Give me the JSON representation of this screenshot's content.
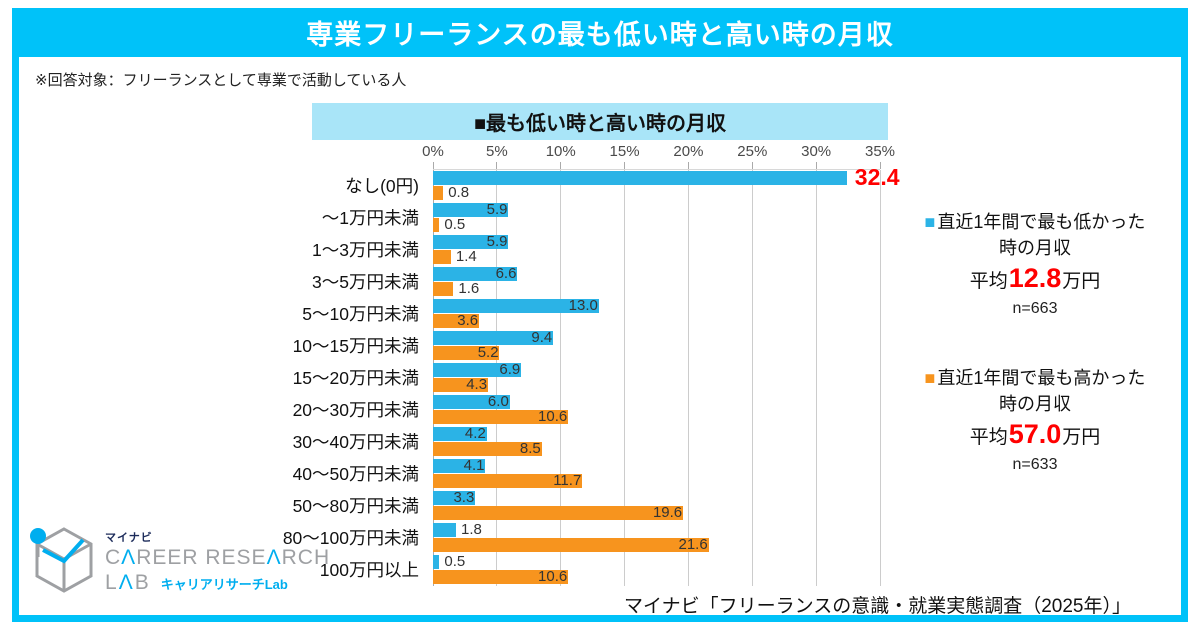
{
  "page": {
    "title": "専業フリーランスの最も低い時と高い時の月収",
    "note": "※回答対象：フリーランスとして専業で活動している人",
    "chart_header": "■最も低い時と高い時の月収",
    "source": "マイナビ「フリーランスの意識・就業実態調査（2025年）」"
  },
  "colors": {
    "accent_cyan": "#00C2F9",
    "band_bg": "#A9E5F8",
    "bar_blue": "#2BB3E6",
    "bar_orange": "#F7941E",
    "highlight_red": "#FF0000"
  },
  "legend_low": {
    "marker": "■",
    "line1": "直近1年間で最も低かった",
    "line2": "時の月収",
    "avg_prefix": "平均",
    "avg_value": "12.8",
    "avg_suffix": "万円",
    "n": "n=663"
  },
  "legend_high": {
    "marker": "■",
    "line1": "直近1年間で最も高かった",
    "line2": "時の月収",
    "avg_prefix": "平均",
    "avg_value": "57.0",
    "avg_suffix": "万円",
    "n": "n=633"
  },
  "logo": {
    "brand": "マイナビ",
    "career_c1": "C",
    "career_a1": "Λ",
    "career_c2": "REER RESE",
    "career_a2": "Λ",
    "career_c3": "RCH",
    "lab_l": "L",
    "lab_a": "Λ",
    "lab_b": "B",
    "sub": "キャリアリサーチLab"
  },
  "chart_data": {
    "type": "bar",
    "orientation": "horizontal",
    "title": "最も低い時と高い時の月収",
    "categories": [
      "なし(0円)",
      "～1万円未満",
      "1～3万円未満",
      "3～5万円未満",
      "5～10万円未満",
      "10～15万円未満",
      "15～20万円未満",
      "20～30万円未満",
      "30～40万円未満",
      "40～50万円未満",
      "50～80万円未満",
      "80～100万円未満",
      "100万円以上"
    ],
    "series": [
      {
        "name": "直近1年間で最も低かった時の月収",
        "color": "#2BB3E6",
        "values": [
          32.4,
          5.9,
          5.9,
          6.6,
          13.0,
          9.4,
          6.9,
          6.0,
          4.2,
          4.1,
          3.3,
          1.8,
          0.5
        ],
        "average_label": "平均12.8万円",
        "n": "n=663"
      },
      {
        "name": "直近1年間で最も高かった時の月収",
        "color": "#F7941E",
        "values": [
          0.8,
          0.5,
          1.4,
          1.6,
          3.6,
          5.2,
          4.3,
          10.6,
          8.5,
          11.7,
          19.6,
          21.6,
          10.6
        ],
        "average_label": "平均57.0万円",
        "n": "n=633"
      }
    ],
    "xlim": [
      0,
      35
    ],
    "xticks": [
      "0%",
      "5%",
      "10%",
      "15%",
      "20%",
      "25%",
      "30%",
      "35%"
    ],
    "grid": true,
    "value_labels": true,
    "inside_label_threshold": 3.0,
    "highlight_value": {
      "series": 0,
      "index": 0,
      "label": "32.4",
      "color": "#FF0000"
    },
    "legend_position": "right"
  }
}
